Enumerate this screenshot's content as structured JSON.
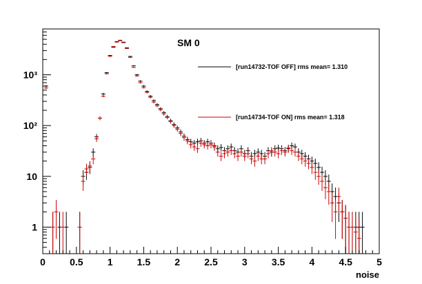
{
  "chart_data": {
    "type": "scatter",
    "title": "SM 0",
    "xlabel": "noise",
    "ylabel": "",
    "xlim": [
      0,
      5
    ],
    "ylim": [
      0.3,
      8000
    ],
    "y_scale": "log",
    "grid": false,
    "legend_position": "top-right",
    "x_ticks": [
      "0",
      "0.5",
      "1",
      "1.5",
      "2",
      "2.5",
      "3",
      "3.5",
      "4",
      "4.5",
      "5"
    ],
    "y_ticks": [
      {
        "value": 1,
        "label": "1"
      },
      {
        "value": 10,
        "label": "10"
      },
      {
        "value": 100,
        "label": "10²"
      },
      {
        "value": 1000,
        "label": "10³"
      }
    ],
    "colors": {
      "off": "#000000",
      "on": "#cc0000"
    },
    "series": [
      {
        "name": "[run14732-TOF OFF] rms mean= 1.310",
        "color": "#000000",
        "x": [
          0.05,
          0.15,
          0.25,
          0.35,
          0.55,
          0.6,
          0.65,
          0.7,
          0.75,
          0.8,
          0.85,
          0.9,
          0.95,
          1.0,
          1.05,
          1.1,
          1.15,
          1.2,
          1.25,
          1.3,
          1.35,
          1.4,
          1.45,
          1.5,
          1.55,
          1.6,
          1.65,
          1.7,
          1.75,
          1.8,
          1.85,
          1.9,
          1.95,
          2.0,
          2.05,
          2.1,
          2.15,
          2.2,
          2.25,
          2.3,
          2.35,
          2.4,
          2.45,
          2.5,
          2.55,
          2.6,
          2.65,
          2.7,
          2.75,
          2.8,
          2.85,
          2.9,
          2.95,
          3.0,
          3.05,
          3.1,
          3.15,
          3.2,
          3.25,
          3.3,
          3.35,
          3.4,
          3.45,
          3.5,
          3.55,
          3.6,
          3.65,
          3.7,
          3.75,
          3.8,
          3.85,
          3.9,
          3.95,
          4.0,
          4.05,
          4.1,
          4.15,
          4.2,
          4.25,
          4.3,
          4.35,
          4.4,
          4.45,
          4.5,
          4.55,
          4.6,
          4.65,
          4.7,
          4.75
        ],
        "y": [
          600,
          1,
          1,
          1,
          1,
          10,
          12,
          15,
          30,
          60,
          140,
          420,
          1100,
          2400,
          3500,
          4500,
          4700,
          4300,
          3400,
          2300,
          1500,
          1000,
          750,
          600,
          470,
          380,
          310,
          260,
          215,
          180,
          150,
          125,
          105,
          90,
          75,
          62,
          53,
          48,
          45,
          48,
          50,
          45,
          48,
          45,
          40,
          35,
          37,
          32,
          35,
          38,
          32,
          30,
          35,
          28,
          32,
          25,
          28,
          30,
          28,
          25,
          32,
          30,
          35,
          36,
          35,
          32,
          36,
          40,
          38,
          30,
          28,
          25,
          22,
          20,
          18,
          15,
          12,
          10,
          8,
          5,
          4,
          3,
          2,
          1.5,
          1,
          1,
          1,
          1,
          1
        ]
      },
      {
        "name": "[run14734-TOF  ON] rms mean= 1.318",
        "color": "#cc0000",
        "x": [
          0.05,
          0.15,
          0.2,
          0.3,
          0.55,
          0.6,
          0.65,
          0.7,
          0.75,
          0.8,
          0.85,
          0.9,
          0.95,
          1.0,
          1.05,
          1.1,
          1.15,
          1.2,
          1.25,
          1.3,
          1.35,
          1.4,
          1.45,
          1.5,
          1.55,
          1.6,
          1.65,
          1.7,
          1.75,
          1.8,
          1.85,
          1.9,
          1.95,
          2.0,
          2.05,
          2.1,
          2.15,
          2.2,
          2.25,
          2.3,
          2.35,
          2.4,
          2.45,
          2.5,
          2.55,
          2.6,
          2.65,
          2.7,
          2.75,
          2.8,
          2.85,
          2.9,
          2.95,
          3.0,
          3.05,
          3.1,
          3.15,
          3.2,
          3.25,
          3.3,
          3.35,
          3.4,
          3.45,
          3.5,
          3.55,
          3.6,
          3.65,
          3.7,
          3.75,
          3.8,
          3.85,
          3.9,
          3.95,
          4.0,
          4.05,
          4.1,
          4.15,
          4.2,
          4.25,
          4.3,
          4.35,
          4.4,
          4.45,
          4.5,
          4.55,
          4.6,
          4.65,
          4.7
        ],
        "y": [
          550,
          1,
          2,
          1,
          1,
          8,
          14,
          16,
          22,
          55,
          140,
          380,
          1050,
          2300,
          3600,
          4400,
          4800,
          4400,
          3300,
          2200,
          1400,
          950,
          700,
          560,
          450,
          360,
          290,
          245,
          205,
          170,
          145,
          120,
          100,
          85,
          70,
          58,
          50,
          42,
          38,
          35,
          45,
          42,
          40,
          42,
          38,
          30,
          25,
          28,
          30,
          32,
          28,
          25,
          30,
          25,
          28,
          22,
          20,
          25,
          22,
          22,
          28,
          32,
          30,
          28,
          32,
          30,
          35,
          32,
          30,
          25,
          22,
          20,
          18,
          15,
          12,
          10,
          8,
          6,
          5,
          3,
          2,
          4,
          2,
          1.5,
          1,
          1,
          0.8,
          0.6
        ]
      }
    ]
  }
}
